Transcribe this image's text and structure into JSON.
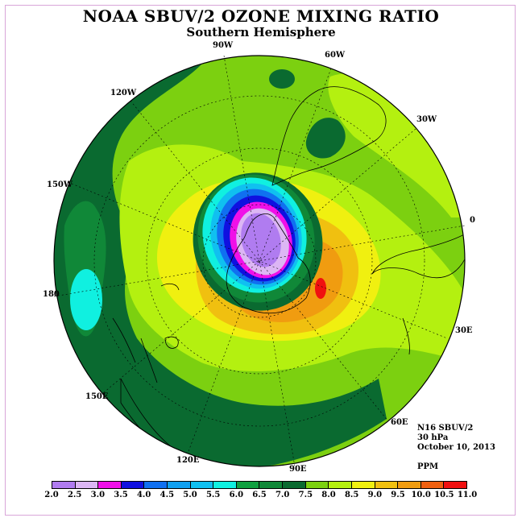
{
  "title": "NOAA SBUV/2 OZONE MIXING RATIO",
  "subtitle": "Southern Hemisphere",
  "longitude_labels": {
    "lon_90w": "90W",
    "lon_60w": "60W",
    "lon_120w": "120W",
    "lon_30w": "30W",
    "lon_150w": "150W",
    "lon_0": "0",
    "lon_180": "180",
    "lon_30e": "30E",
    "lon_150e": "150E",
    "lon_60e": "60E",
    "lon_120e": "120E",
    "lon_90e": "90E"
  },
  "info": {
    "satellite": "N16 SBUV/2",
    "level": "30 hPa",
    "date": "October 10, 2013",
    "units": "PPM"
  },
  "colorbar": {
    "labels": [
      "2.0",
      "2.5",
      "3.0",
      "3.5",
      "4.0",
      "4.5",
      "5.0",
      "5.5",
      "6.0",
      "6.5",
      "7.0",
      "7.5",
      "8.0",
      "8.5",
      "9.0",
      "9.5",
      "10.0",
      "10.5",
      "11.0"
    ],
    "colors": [
      "#b07cf0",
      "#dcb6f4",
      "#f010e8",
      "#1010e0",
      "#1070f0",
      "#10a0f0",
      "#10c0f0",
      "#10f0e0",
      "#10a040",
      "#108838",
      "#0a6a30",
      "#7cd010",
      "#b4f010",
      "#f0f010",
      "#f0c010",
      "#f09c10",
      "#f06010",
      "#f01010",
      "#7a4a30"
    ]
  },
  "map_colors": {
    "ocean_dark_green": "#0a6a30",
    "mid_green": "#108838",
    "light_green": "#7cd010",
    "yellow_green": "#b4f010",
    "yellow": "#f0f010",
    "gold": "#f0c010",
    "orange": "#f09c10",
    "red": "#f01010",
    "hole_purple": "#b07cf0",
    "hole_lavender": "#dcb6f4",
    "hole_magenta": "#f010e8",
    "hole_blue": "#1010e0",
    "hole_cyan": "#10f0e0"
  }
}
